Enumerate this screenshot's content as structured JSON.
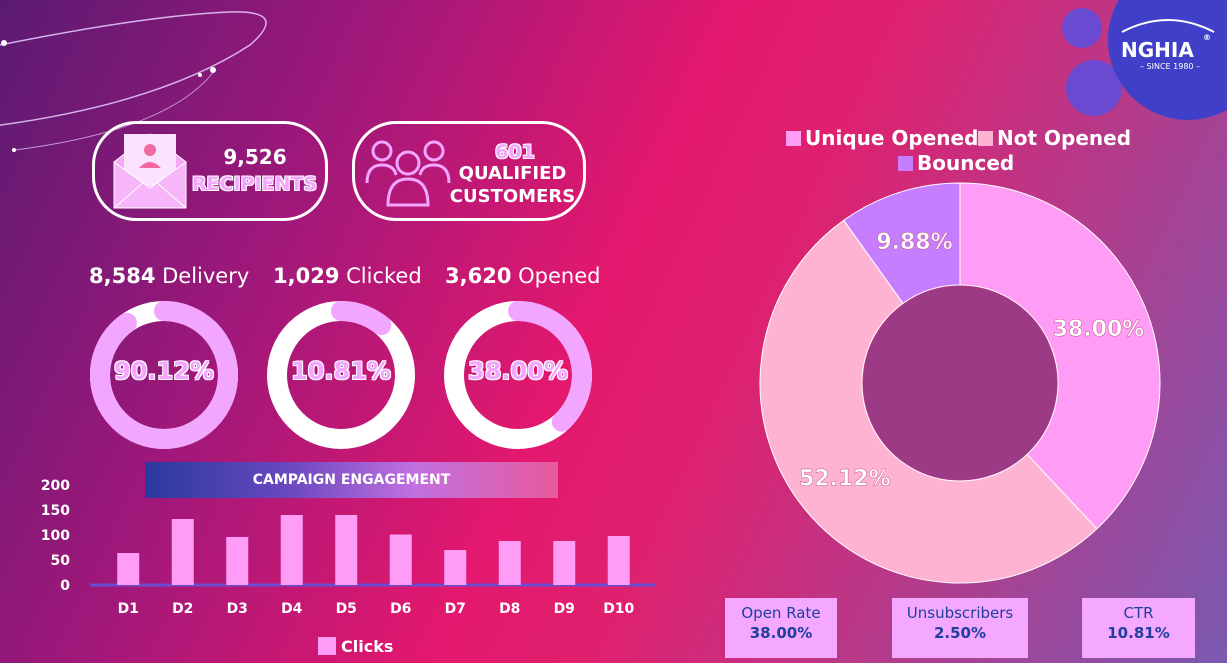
{
  "stats": {
    "recipients": {
      "value": "9,526",
      "label": "RECIPIENTS"
    },
    "qualified": {
      "value": "601",
      "label_line1": "QUALIFIED",
      "label_line2": "CUSTOMERS"
    }
  },
  "kpis": [
    {
      "num": "8,584",
      "label": " Delivery",
      "pct": "90.12%",
      "fraction": 0.9012
    },
    {
      "num": "1,029",
      "label": " Clicked",
      "pct": "10.81%",
      "fraction": 0.1081
    },
    {
      "num": "3,620",
      "label": " Opened",
      "pct": "38.00%",
      "fraction": 0.38
    }
  ],
  "banner": "CAMPAIGN ENGAGEMENT",
  "bar_legend": "Clicks",
  "logo": {
    "name": "NGHIA",
    "tagline": "– SINCE 1980 –",
    "mark": "®"
  },
  "donut_legend": [
    "Unique Opened",
    "Not Opened",
    "Bounced"
  ],
  "metrics": [
    {
      "label": "Open Rate",
      "value": "38.00%"
    },
    {
      "label": "Unsubscribers",
      "value": "2.50%"
    },
    {
      "label": "CTR",
      "value": "10.81%"
    }
  ],
  "colors": {
    "unique_opened": "#ff9cf6",
    "not_opened": "#ffb3d2",
    "bounced": "#c77dff",
    "bar": "#ff9cf6",
    "ring_fill": "#f3a6ff",
    "ring_track": "#ffffff"
  },
  "chart_data": [
    {
      "type": "bar",
      "title": "CAMPAIGN ENGAGEMENT",
      "categories": [
        "D1",
        "D2",
        "D3",
        "D4",
        "D5",
        "D6",
        "D7",
        "D8",
        "D9",
        "D10"
      ],
      "series": [
        {
          "name": "Clicks",
          "values": [
            64,
            132,
            96,
            140,
            140,
            101,
            70,
            88,
            88,
            98
          ]
        }
      ],
      "ylim": [
        0,
        200
      ],
      "yticks": [
        0,
        50,
        100,
        150,
        200
      ],
      "legend": "bottom"
    },
    {
      "type": "pie",
      "labels": [
        "Unique Opened",
        "Not Opened",
        "Bounced"
      ],
      "values": [
        38.0,
        52.12,
        9.88
      ],
      "value_labels": [
        "38.00%",
        "52.12%",
        "9.88%"
      ],
      "legend": "top"
    }
  ]
}
